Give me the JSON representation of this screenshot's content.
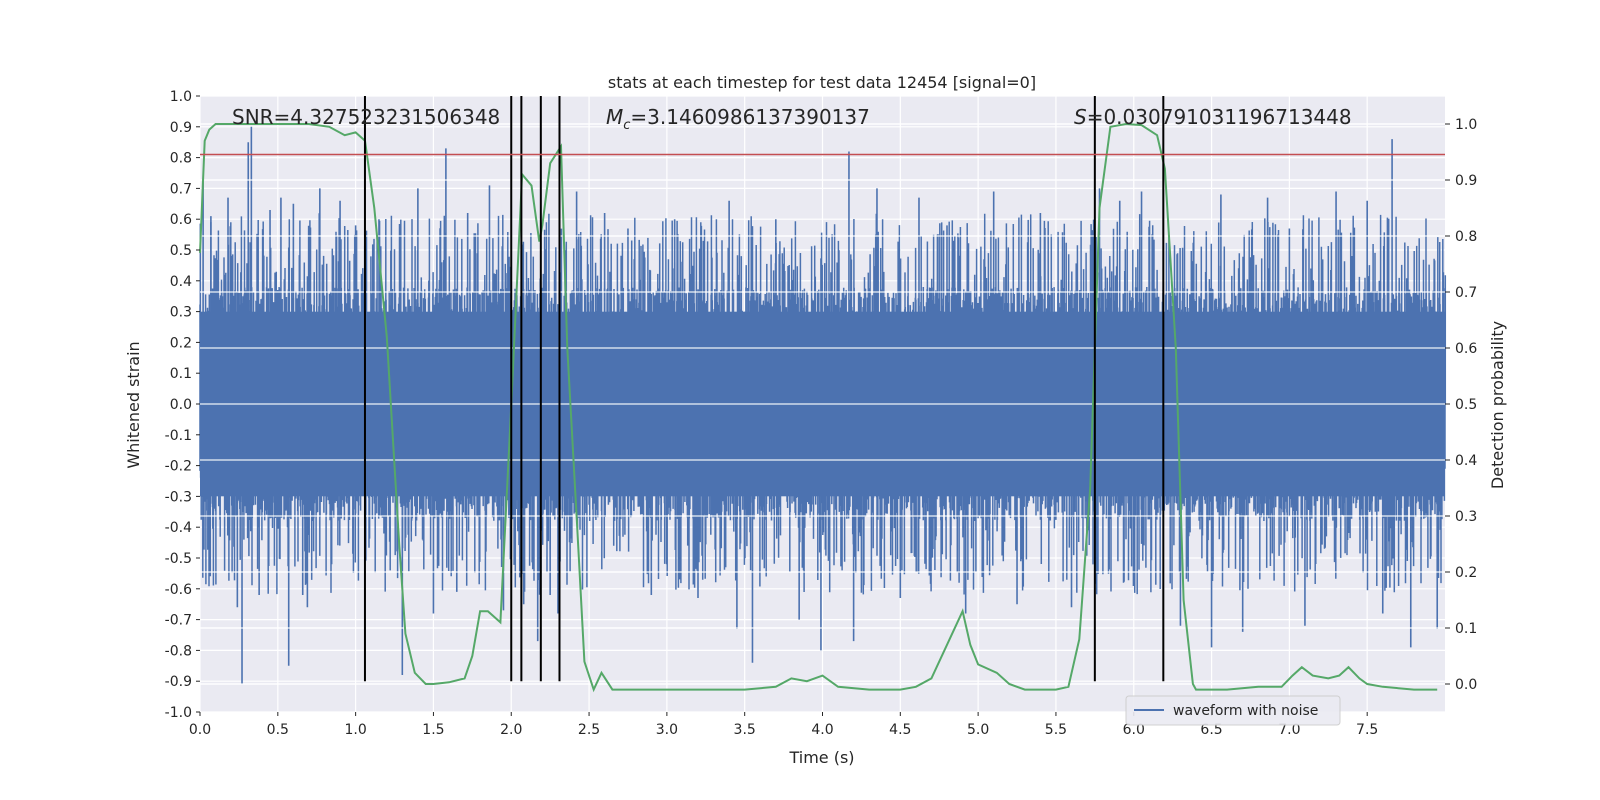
{
  "chart_data": {
    "type": "line",
    "title": "stats at each timestep for test data 12454 [signal=0]",
    "xlabel": "Time (s)",
    "ylabel_left": "Whitened strain",
    "ylabel_right": "Detection probability",
    "xlim": [
      0.0,
      8.0
    ],
    "ylim_left": [
      -1.0,
      1.0
    ],
    "ylim_right": [
      -0.05,
      1.05
    ],
    "xticks": [
      "0.0",
      "0.5",
      "1.0",
      "1.5",
      "2.0",
      "2.5",
      "3.0",
      "3.5",
      "4.0",
      "4.5",
      "5.0",
      "5.5",
      "6.0",
      "6.5",
      "7.0",
      "7.5"
    ],
    "yticks_left": [
      "1.0",
      "0.9",
      "0.8",
      "0.7",
      "0.6",
      "0.5",
      "0.4",
      "0.3",
      "0.2",
      "0.1",
      "0.0",
      "-0.1",
      "-0.2",
      "-0.3",
      "-0.4",
      "-0.5",
      "-0.6",
      "-0.7",
      "-0.8",
      "-0.9",
      "-1.0"
    ],
    "yticks_right": [
      "1.0",
      "0.9",
      "0.8",
      "0.7",
      "0.6",
      "0.5",
      "0.4",
      "0.3",
      "0.2",
      "0.1",
      "0.0"
    ],
    "grid": true,
    "legend": {
      "position": "lower-right",
      "entries": [
        "waveform with noise"
      ]
    },
    "annotations": {
      "snr": "SNR=4.327523231506348",
      "mc_symbol": "M",
      "mc_sub": "c",
      "mc_value": "=3.1460986137390137",
      "s_symbol": "S",
      "s_value": "=0.030791031196713448"
    },
    "threshold_left": 0.81,
    "vlines": [
      1.06,
      2.0,
      2.065,
      2.19,
      2.31,
      5.75,
      6.19
    ],
    "vline_range_left": [
      -0.9,
      1.0
    ],
    "series": [
      {
        "name": "waveform with noise",
        "kind": "noise",
        "color": "#4c72b0",
        "core_amplitude": 0.38,
        "spike_peaks": [
          [
            0.02,
            0.73
          ],
          [
            0.07,
            0.61
          ],
          [
            0.18,
            0.67
          ],
          [
            0.24,
            -0.66
          ],
          [
            0.27,
            -0.91
          ],
          [
            0.31,
            0.85
          ],
          [
            0.33,
            0.9
          ],
          [
            0.38,
            -0.62
          ],
          [
            0.45,
            0.63
          ],
          [
            0.52,
            0.67
          ],
          [
            0.57,
            -0.85
          ],
          [
            0.6,
            0.65
          ],
          [
            0.66,
            -0.62
          ],
          [
            0.69,
            -0.66
          ],
          [
            0.77,
            0.7
          ],
          [
            0.9,
            0.66
          ],
          [
            1.0,
            0.58
          ],
          [
            1.15,
            0.6
          ],
          [
            1.3,
            -0.88
          ],
          [
            1.4,
            0.7
          ],
          [
            1.5,
            -0.68
          ],
          [
            1.58,
            0.83
          ],
          [
            1.65,
            -0.61
          ],
          [
            1.72,
            0.62
          ],
          [
            1.86,
            0.71
          ],
          [
            1.95,
            -0.67
          ],
          [
            2.08,
            -0.65
          ],
          [
            2.17,
            -0.77
          ],
          [
            2.25,
            -0.62
          ],
          [
            2.3,
            -0.68
          ],
          [
            2.42,
            0.69
          ],
          [
            2.6,
            0.62
          ],
          [
            2.75,
            0.57
          ],
          [
            2.9,
            -0.62
          ],
          [
            3.05,
            0.6
          ],
          [
            3.2,
            -0.63
          ],
          [
            3.4,
            0.66
          ],
          [
            3.45,
            -0.73
          ],
          [
            3.55,
            -0.84
          ],
          [
            3.7,
            0.6
          ],
          [
            3.85,
            -0.7
          ],
          [
            3.99,
            -0.8
          ],
          [
            4.17,
            0.82
          ],
          [
            4.2,
            -0.77
          ],
          [
            4.35,
            0.7
          ],
          [
            4.5,
            -0.63
          ],
          [
            4.62,
            0.67
          ],
          [
            4.8,
            0.58
          ],
          [
            4.92,
            -0.68
          ],
          [
            5.1,
            0.69
          ],
          [
            5.25,
            -0.65
          ],
          [
            5.4,
            0.62
          ],
          [
            5.6,
            -0.66
          ],
          [
            5.78,
            0.7
          ],
          [
            5.91,
            0.66
          ],
          [
            6.05,
            0.69
          ],
          [
            6.3,
            -0.72
          ],
          [
            6.5,
            -0.79
          ],
          [
            6.56,
            0.68
          ],
          [
            6.7,
            -0.74
          ],
          [
            6.86,
            0.67
          ],
          [
            7.0,
            0.57
          ],
          [
            7.1,
            -0.72
          ],
          [
            7.3,
            0.69
          ],
          [
            7.5,
            0.66
          ],
          [
            7.6,
            -0.68
          ],
          [
            7.66,
            0.86
          ],
          [
            7.78,
            -0.79
          ],
          [
            7.95,
            -0.73
          ]
        ]
      },
      {
        "name": "",
        "kind": "probability",
        "axis": "right",
        "color": "#55a868",
        "points": [
          [
            0.0,
            0.77
          ],
          [
            0.03,
            0.97
          ],
          [
            0.06,
            0.99
          ],
          [
            0.1,
            1.0
          ],
          [
            0.4,
            1.0
          ],
          [
            0.7,
            1.0
          ],
          [
            0.83,
            0.995
          ],
          [
            0.93,
            0.98
          ],
          [
            1.0,
            0.985
          ],
          [
            1.06,
            0.97
          ],
          [
            1.12,
            0.85
          ],
          [
            1.2,
            0.62
          ],
          [
            1.28,
            0.25
          ],
          [
            1.32,
            0.09
          ],
          [
            1.38,
            0.02
          ],
          [
            1.45,
            0.0
          ],
          [
            1.5,
            0.0
          ],
          [
            1.6,
            0.003
          ],
          [
            1.7,
            0.01
          ],
          [
            1.75,
            0.05
          ],
          [
            1.8,
            0.13
          ],
          [
            1.85,
            0.13
          ],
          [
            1.93,
            0.11
          ],
          [
            2.0,
            0.5
          ],
          [
            2.07,
            0.91
          ],
          [
            2.13,
            0.89
          ],
          [
            2.18,
            0.79
          ],
          [
            2.2,
            0.82
          ],
          [
            2.25,
            0.93
          ],
          [
            2.32,
            0.96
          ],
          [
            2.36,
            0.6
          ],
          [
            2.42,
            0.3
          ],
          [
            2.47,
            0.04
          ],
          [
            2.53,
            -0.01
          ],
          [
            2.58,
            0.02
          ],
          [
            2.65,
            -0.01
          ],
          [
            2.7,
            -0.01
          ],
          [
            3.0,
            -0.01
          ],
          [
            3.2,
            -0.01
          ],
          [
            3.5,
            -0.01
          ],
          [
            3.7,
            -0.005
          ],
          [
            3.8,
            0.01
          ],
          [
            3.9,
            0.005
          ],
          [
            4.0,
            0.015
          ],
          [
            4.1,
            -0.005
          ],
          [
            4.3,
            -0.01
          ],
          [
            4.5,
            -0.01
          ],
          [
            4.6,
            -0.005
          ],
          [
            4.7,
            0.01
          ],
          [
            4.9,
            0.13
          ],
          [
            4.95,
            0.07
          ],
          [
            5.0,
            0.035
          ],
          [
            5.12,
            0.02
          ],
          [
            5.2,
            0.0
          ],
          [
            5.3,
            -0.01
          ],
          [
            5.5,
            -0.01
          ],
          [
            5.58,
            -0.005
          ],
          [
            5.65,
            0.08
          ],
          [
            5.72,
            0.35
          ],
          [
            5.78,
            0.85
          ],
          [
            5.85,
            0.995
          ],
          [
            5.95,
            1.0
          ],
          [
            6.05,
            0.998
          ],
          [
            6.15,
            0.98
          ],
          [
            6.2,
            0.92
          ],
          [
            6.27,
            0.6
          ],
          [
            6.32,
            0.15
          ],
          [
            6.38,
            0.0
          ],
          [
            6.4,
            -0.01
          ],
          [
            6.6,
            -0.01
          ],
          [
            6.8,
            -0.005
          ],
          [
            6.95,
            -0.005
          ],
          [
            7.02,
            0.015
          ],
          [
            7.08,
            0.03
          ],
          [
            7.15,
            0.015
          ],
          [
            7.25,
            0.01
          ],
          [
            7.32,
            0.015
          ],
          [
            7.38,
            0.03
          ],
          [
            7.45,
            0.01
          ],
          [
            7.5,
            0.0
          ],
          [
            7.6,
            -0.005
          ],
          [
            7.8,
            -0.01
          ],
          [
            7.95,
            -0.01
          ]
        ]
      }
    ]
  }
}
